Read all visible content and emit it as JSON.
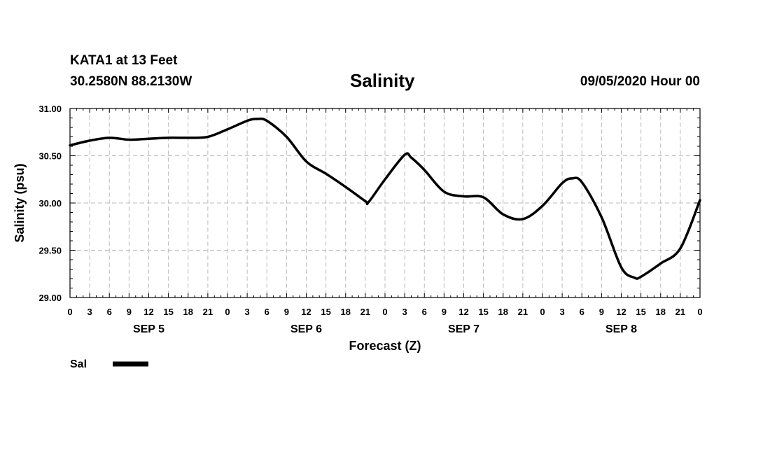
{
  "header": {
    "station": "KATA1 at 13 Feet",
    "coordinates": "30.2580N 88.2130W",
    "date": "09/05/2020 Hour 00"
  },
  "chart_data": {
    "type": "line",
    "title": "Salinity",
    "xlabel": "Forecast (Z)",
    "ylabel": "Salinity (psu)",
    "ylim": [
      29.0,
      31.0
    ],
    "xlim": [
      0,
      96
    ],
    "yticks": [
      "29.00",
      "29.50",
      "30.00",
      "30.50",
      "31.00"
    ],
    "ytick_values": [
      29.0,
      29.5,
      30.0,
      30.5,
      31.0
    ],
    "xtick_hours": [
      0,
      3,
      6,
      9,
      12,
      15,
      18,
      21,
      24,
      27,
      30,
      33,
      36,
      39,
      42,
      45,
      48,
      51,
      54,
      57,
      60,
      63,
      66,
      69,
      72,
      75,
      78,
      81,
      84,
      87,
      90,
      93,
      96
    ],
    "xtick_labels": [
      "0",
      "3",
      "6",
      "9",
      "12",
      "15",
      "18",
      "21",
      "0",
      "3",
      "6",
      "9",
      "12",
      "15",
      "18",
      "21",
      "0",
      "3",
      "6",
      "9",
      "12",
      "15",
      "18",
      "21",
      "0",
      "3",
      "6",
      "9",
      "12",
      "15",
      "18",
      "21",
      "0"
    ],
    "day_labels": [
      {
        "label": "SEP 5",
        "hour": 12
      },
      {
        "label": "SEP 6",
        "hour": 36
      },
      {
        "label": "SEP 7",
        "hour": 60
      },
      {
        "label": "SEP 8",
        "hour": 84
      }
    ],
    "grid": true,
    "legend": {
      "placement": "bottom-left",
      "entries": [
        {
          "label": "Sal",
          "color": "#000000"
        }
      ]
    },
    "series": [
      {
        "name": "Sal",
        "color": "#000000",
        "x": [
          0,
          3,
          6,
          9,
          12,
          15,
          18,
          21,
          24,
          27,
          28.5,
          30,
          33,
          36,
          39,
          42,
          45,
          45.5,
          48,
          51,
          52,
          54,
          57,
          60,
          63,
          66,
          69,
          72,
          75,
          76.5,
          78,
          81,
          84,
          86,
          87,
          90,
          93,
          96
        ],
        "y": [
          30.61,
          30.66,
          30.69,
          30.67,
          30.68,
          30.69,
          30.69,
          30.7,
          30.78,
          30.87,
          30.89,
          30.87,
          30.7,
          30.44,
          30.31,
          30.17,
          30.02,
          30.01,
          30.25,
          30.51,
          30.48,
          30.35,
          30.12,
          30.07,
          30.06,
          29.88,
          29.83,
          29.97,
          30.21,
          30.26,
          30.22,
          29.85,
          29.32,
          29.21,
          29.22,
          29.36,
          29.52,
          30.03
        ]
      }
    ]
  }
}
